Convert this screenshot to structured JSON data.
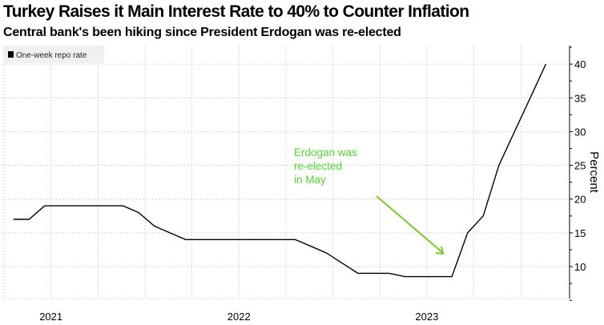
{
  "title": "Turkey Raises it Main Interest Rate to 40% to Counter Inflation",
  "subtitle": "Central bank's been hiking since President Erdogan was re-elected",
  "chart_data": {
    "type": "line",
    "title": "Turkey Raises it Main Interest Rate to 40% to Counter Inflation",
    "subtitle": "Central bank's been hiking since President Erdogan was re-elected",
    "ylabel": "Percent",
    "xlabel": "",
    "ylim": [
      5,
      42
    ],
    "yticks": [
      10,
      15,
      20,
      25,
      30,
      35,
      40
    ],
    "xtick_labels": [
      "2021",
      "2022",
      "2023"
    ],
    "grid": true,
    "legend_position": "top-left",
    "series": [
      {
        "name": "One-week repo rate",
        "color": "#000000",
        "points": [
          [
            "2021-01",
            17
          ],
          [
            "2021-02",
            17
          ],
          [
            "2021-03",
            19
          ],
          [
            "2021-04",
            19
          ],
          [
            "2021-05",
            19
          ],
          [
            "2021-06",
            19
          ],
          [
            "2021-07",
            19
          ],
          [
            "2021-08",
            19
          ],
          [
            "2021-09",
            18
          ],
          [
            "2021-10",
            16
          ],
          [
            "2021-11",
            15
          ],
          [
            "2021-12",
            14
          ],
          [
            "2022-01",
            14
          ],
          [
            "2022-02",
            14
          ],
          [
            "2022-03",
            14
          ],
          [
            "2022-04",
            14
          ],
          [
            "2022-05",
            14
          ],
          [
            "2022-06",
            14
          ],
          [
            "2022-07",
            14
          ],
          [
            "2022-08",
            13
          ],
          [
            "2022-09",
            12
          ],
          [
            "2022-10",
            10.5
          ],
          [
            "2022-11",
            9
          ],
          [
            "2022-12",
            9
          ],
          [
            "2023-01",
            9
          ],
          [
            "2023-02",
            8.5
          ],
          [
            "2023-03",
            8.5
          ],
          [
            "2023-04",
            8.5
          ],
          [
            "2023-05",
            8.5
          ],
          [
            "2023-06",
            15
          ],
          [
            "2023-07",
            17.5
          ],
          [
            "2023-08",
            25
          ],
          [
            "2023-09",
            30
          ],
          [
            "2023-10",
            35
          ],
          [
            "2023-11",
            40
          ]
        ]
      }
    ],
    "annotation": {
      "text": [
        "Erdogan was",
        "re-elected",
        "in May"
      ],
      "color": "#55d43a",
      "arrow_color": "#7cc52b"
    }
  }
}
